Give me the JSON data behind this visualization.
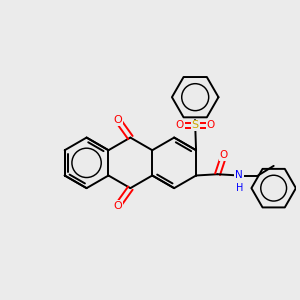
{
  "bg": "#ebebeb",
  "bond_lw": 1.4,
  "atom_colors": {
    "O": "#ff0000",
    "S": "#ccaa00",
    "N": "#0000ff",
    "C": "#000000"
  },
  "figsize": [
    3.0,
    3.0
  ],
  "dpi": 100,
  "xlim": [
    -1.6,
    1.8
  ],
  "ylim": [
    -1.8,
    1.7
  ]
}
